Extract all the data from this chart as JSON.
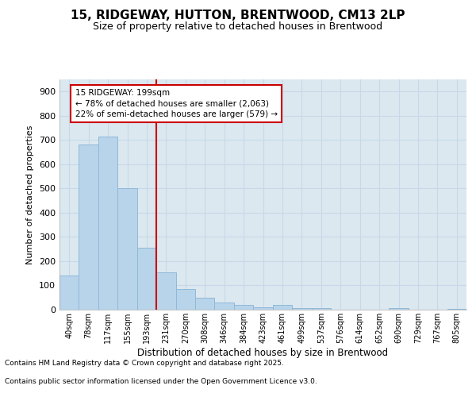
{
  "title_line1": "15, RIDGEWAY, HUTTON, BRENTWOOD, CM13 2LP",
  "title_line2": "Size of property relative to detached houses in Brentwood",
  "xlabel": "Distribution of detached houses by size in Brentwood",
  "ylabel": "Number of detached properties",
  "categories": [
    "40sqm",
    "78sqm",
    "117sqm",
    "155sqm",
    "193sqm",
    "231sqm",
    "270sqm",
    "308sqm",
    "346sqm",
    "384sqm",
    "423sqm",
    "461sqm",
    "499sqm",
    "537sqm",
    "576sqm",
    "614sqm",
    "652sqm",
    "690sqm",
    "729sqm",
    "767sqm",
    "805sqm"
  ],
  "values": [
    140,
    680,
    715,
    500,
    255,
    155,
    85,
    50,
    30,
    20,
    10,
    20,
    5,
    5,
    0,
    0,
    0,
    5,
    0,
    0,
    3
  ],
  "bar_color": "#b8d4ea",
  "bar_edge_color": "#90b8d8",
  "red_line_x": 4.5,
  "annotation_line1": "15 RIDGEWAY: 199sqm",
  "annotation_line2": "← 78% of detached houses are smaller (2,063)",
  "annotation_line3": "22% of semi-detached houses are larger (579) →",
  "annotation_box_color": "#ffffff",
  "annotation_box_edge": "#cc0000",
  "red_line_color": "#cc0000",
  "grid_color": "#c8d8e8",
  "background_color": "#dce8f0",
  "ylim": [
    0,
    950
  ],
  "yticks": [
    0,
    100,
    200,
    300,
    400,
    500,
    600,
    700,
    800,
    900
  ],
  "footer_line1": "Contains HM Land Registry data © Crown copyright and database right 2025.",
  "footer_line2": "Contains public sector information licensed under the Open Government Licence v3.0."
}
